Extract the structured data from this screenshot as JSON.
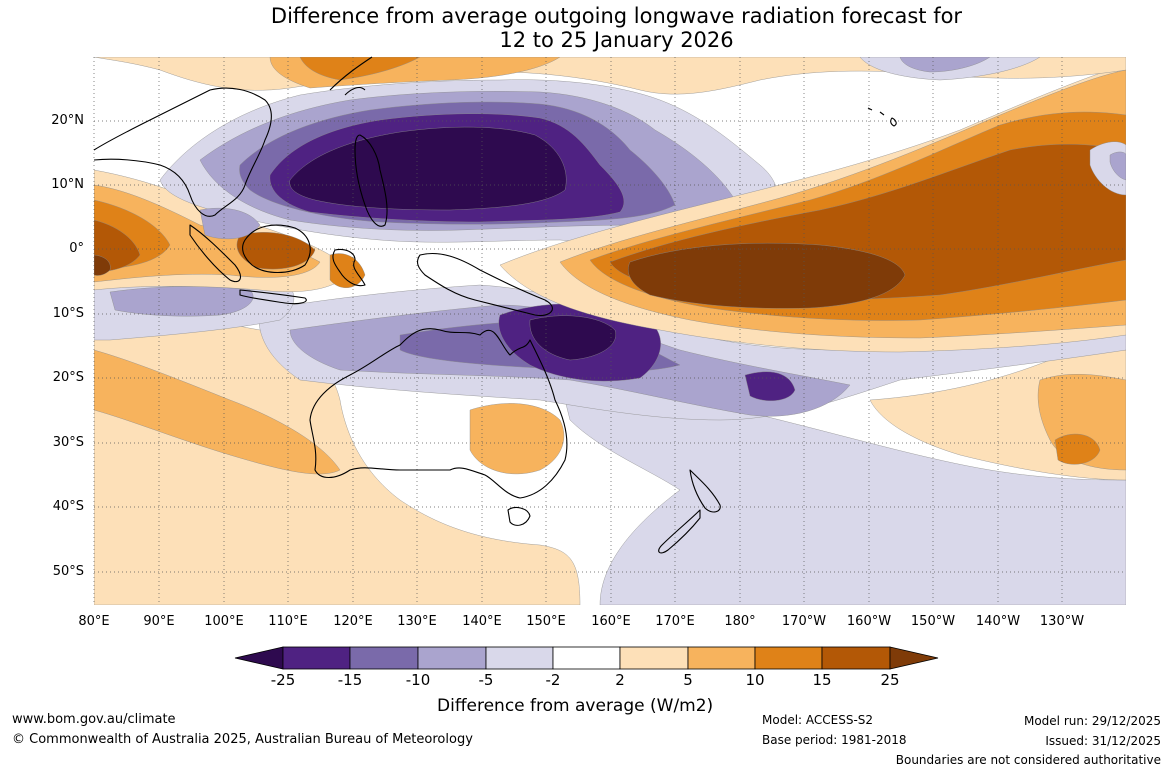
{
  "title": {
    "line1": "Difference from average outgoing longwave radiation forecast for",
    "line2": "12 to 25 January 2026"
  },
  "map": {
    "lat_labels": [
      "20°N",
      "10°N",
      "0°",
      "10°S",
      "20°S",
      "30°S",
      "40°S",
      "50°S"
    ],
    "lon_labels": [
      "80°E",
      "90°E",
      "100°E",
      "110°E",
      "120°E",
      "130°E",
      "140°E",
      "150°E",
      "160°E",
      "170°E",
      "180°",
      "170°W",
      "160°W",
      "150°W",
      "140°W",
      "130°W"
    ],
    "fill_colors": {
      "strong_negative": "#2e0a4f",
      "negative_15": "#4f2282",
      "negative_10": "#7a6aaa",
      "negative_5": "#aaa4ce",
      "negative_2": "#d9d8ea",
      "neutral": "#ffffff",
      "positive_2": "#fde0b8",
      "positive_5": "#f7b35d",
      "positive_10": "#df8218",
      "positive_15": "#b35806",
      "strong_positive": "#7f3b08"
    }
  },
  "colorbar": {
    "labels": [
      "-25",
      "-15",
      "-10",
      "-5",
      "-2",
      "2",
      "5",
      "10",
      "15",
      "25"
    ],
    "colors": [
      "#2e0a4f",
      "#4f2282",
      "#7a6aaa",
      "#aaa4ce",
      "#d9d8ea",
      "#ffffff",
      "#fde0b8",
      "#f7b35d",
      "#df8218",
      "#b35806",
      "#7f3b08"
    ],
    "title": "Difference from average (W/m2)"
  },
  "footer": {
    "website": "www.bom.gov.au/climate",
    "copyright": "© Commonwealth of Australia 2025, Australian Bureau of Meteorology",
    "model": "Model: ACCESS-S2",
    "base_period": "Base period: 1981-2018",
    "model_run": "Model run: 29/12/2025",
    "issued": "Issued: 31/12/2025",
    "disclaimer": "Boundaries are not considered authoritative"
  }
}
